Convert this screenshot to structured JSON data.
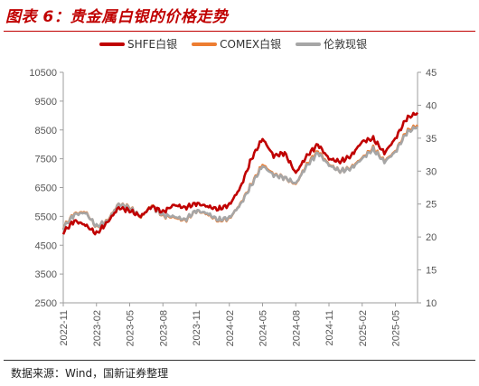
{
  "title": "图表 6：贵金属白银的价格走势",
  "source": "数据来源：Wind，国新证券整理",
  "colors": {
    "shfe": "#c00000",
    "comex": "#ed7d31",
    "london": "#a6a6a6",
    "axis": "#9e9e9e"
  },
  "chart_data": {
    "type": "line",
    "legend_position": "top-center",
    "grid": false,
    "x_ticks": [
      "2022-11",
      "2023-02",
      "2023-05",
      "2023-08",
      "2023-11",
      "2024-02",
      "2024-05",
      "2024-08",
      "2024-11",
      "2025-02",
      "2025-05"
    ],
    "x_range": [
      "2022-11",
      "2025-07"
    ],
    "y_left": {
      "range": [
        2500,
        10500
      ],
      "ticks": [
        2500,
        3500,
        4500,
        5500,
        6500,
        7500,
        8500,
        9500,
        10500
      ]
    },
    "y_right": {
      "range": [
        10,
        45
      ],
      "ticks": [
        10,
        15,
        20,
        25,
        30,
        35,
        40,
        45
      ]
    },
    "series": [
      {
        "name": "SHFE白银",
        "axis": "left",
        "color": "#c00000",
        "x": [
          "2022-11",
          "2022-12",
          "2023-01",
          "2023-02",
          "2023-03",
          "2023-04",
          "2023-05",
          "2023-06",
          "2023-07",
          "2023-08",
          "2023-09",
          "2023-10",
          "2023-11",
          "2023-12",
          "2024-01",
          "2024-02",
          "2024-03",
          "2024-04",
          "2024-05",
          "2024-06",
          "2024-07",
          "2024-08",
          "2024-09",
          "2024-10",
          "2024-11",
          "2024-12",
          "2025-01",
          "2025-02",
          "2025-03",
          "2025-04",
          "2025-05",
          "2025-06",
          "2025-07"
        ],
        "values": [
          4950,
          5350,
          5200,
          4900,
          5300,
          5800,
          5700,
          5500,
          5850,
          5650,
          5900,
          5800,
          5950,
          5850,
          5750,
          5900,
          6500,
          7500,
          8200,
          7600,
          7700,
          7000,
          7600,
          8000,
          7500,
          7400,
          7600,
          8100,
          8200,
          7700,
          8200,
          8900,
          9100
        ]
      },
      {
        "name": "COMEX白银",
        "axis": "right",
        "color": "#ed7d31",
        "x": [
          "2022-11",
          "2022-12",
          "2023-01",
          "2023-02",
          "2023-03",
          "2023-04",
          "2023-05",
          "2023-06",
          "2023-07",
          "2023-08",
          "2023-09",
          "2023-10",
          "2023-11",
          "2023-12",
          "2024-01",
          "2024-02",
          "2024-03",
          "2024-04",
          "2024-05",
          "2024-06",
          "2024-07",
          "2024-08",
          "2024-09",
          "2024-10",
          "2024-11",
          "2024-12",
          "2025-01",
          "2025-02",
          "2025-03",
          "2025-04",
          "2025-05",
          "2025-06",
          "2025-07"
        ],
        "values": [
          21.5,
          23.5,
          23.8,
          21.5,
          22.5,
          25.0,
          24.5,
          23.0,
          24.8,
          23.2,
          23.0,
          22.5,
          24.0,
          23.5,
          22.5,
          22.8,
          25.0,
          28.0,
          31.0,
          29.5,
          29.0,
          28.0,
          31.0,
          33.0,
          31.0,
          30.0,
          30.5,
          32.0,
          33.5,
          31.5,
          33.0,
          36.0,
          37.0
        ]
      },
      {
        "name": "伦敦现银",
        "axis": "right",
        "color": "#a6a6a6",
        "x": [
          "2022-11",
          "2022-12",
          "2023-01",
          "2023-02",
          "2023-03",
          "2023-04",
          "2023-05",
          "2023-06",
          "2023-07",
          "2023-08",
          "2023-09",
          "2023-10",
          "2023-11",
          "2023-12",
          "2024-01",
          "2024-02",
          "2024-03",
          "2024-04",
          "2024-05",
          "2024-06",
          "2024-07",
          "2024-08",
          "2024-09",
          "2024-10",
          "2024-11",
          "2024-12",
          "2025-01",
          "2025-02",
          "2025-03",
          "2025-04",
          "2025-05",
          "2025-06",
          "2025-07"
        ],
        "values": [
          21.4,
          23.4,
          23.7,
          21.6,
          22.4,
          25.0,
          24.4,
          23.1,
          24.7,
          23.3,
          23.1,
          22.6,
          24.0,
          23.6,
          22.6,
          22.9,
          24.9,
          27.9,
          30.8,
          29.4,
          29.0,
          28.1,
          30.8,
          32.8,
          30.9,
          30.0,
          30.4,
          31.9,
          33.3,
          31.4,
          32.9,
          35.8,
          36.8
        ]
      }
    ]
  }
}
